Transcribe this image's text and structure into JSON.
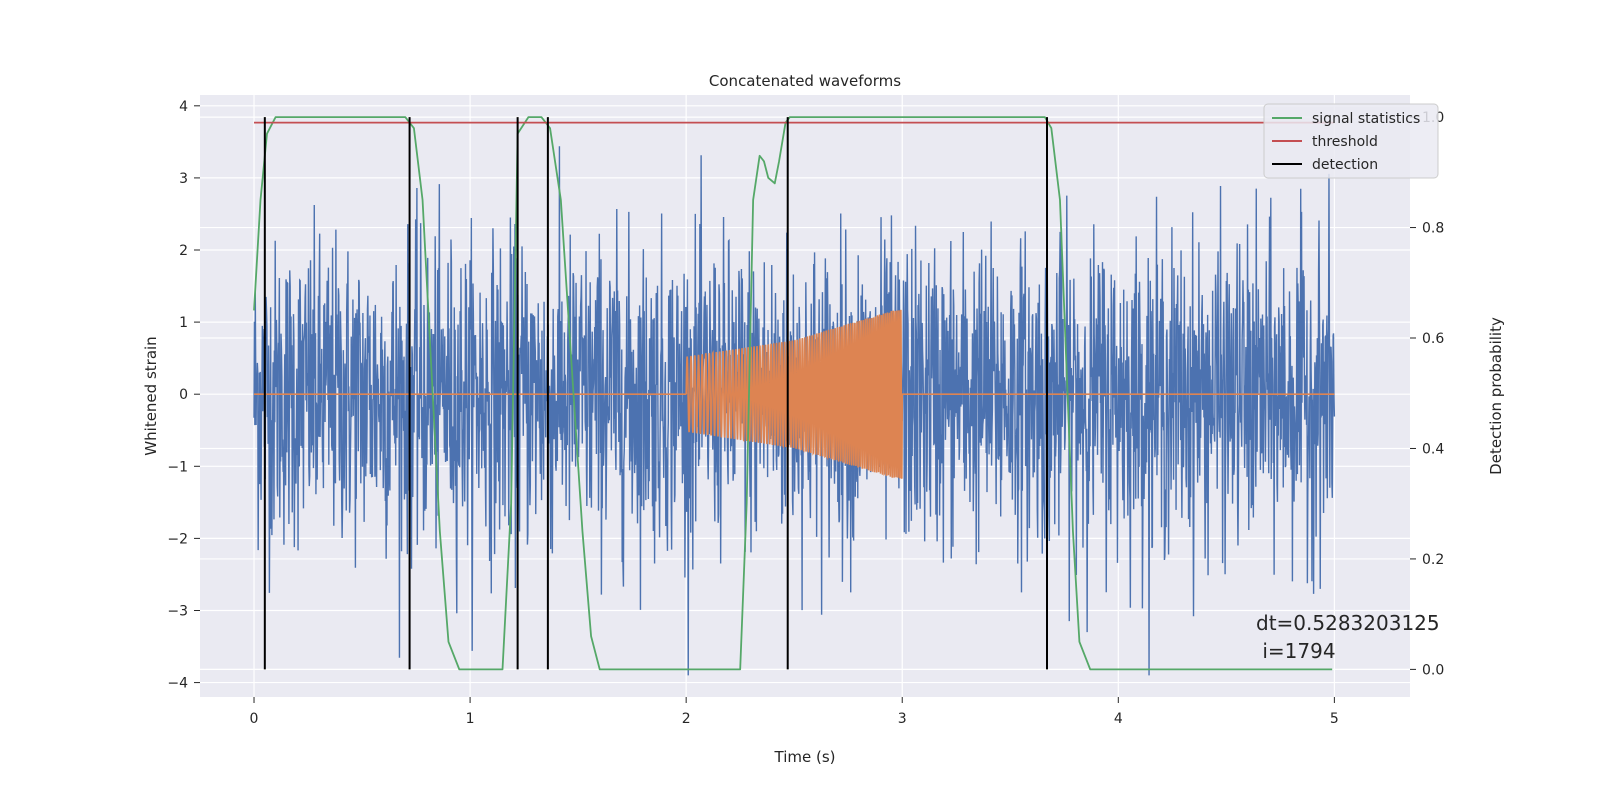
{
  "chart_data": {
    "type": "line",
    "title": "Concatenated waveforms",
    "xlabel": "Time (s)",
    "ylabel_left": "Whitened strain",
    "ylabel_right": "Detection probability",
    "xlim": [
      -0.25,
      5.35
    ],
    "ylim_left": [
      -4.2,
      4.15
    ],
    "ylim_right": [
      -0.05,
      1.04
    ],
    "xticks": [
      0,
      1,
      2,
      3,
      4,
      5
    ],
    "xtick_labels": [
      "0",
      "1",
      "2",
      "3",
      "4",
      "5"
    ],
    "yticks_left": [
      -4,
      -3,
      -2,
      -1,
      0,
      1,
      2,
      3,
      4
    ],
    "ytick_labels_left": [
      "−4",
      "−3",
      "−2",
      "−1",
      "0",
      "1",
      "2",
      "3",
      "4"
    ],
    "yticks_right": [
      0.0,
      0.2,
      0.4,
      0.6,
      0.8,
      1.0
    ],
    "ytick_labels_right": [
      "0.0",
      "0.2",
      "0.4",
      "0.6",
      "0.8",
      "1.0"
    ],
    "grid": true,
    "legend_position": "top-right",
    "colors": {
      "background": "#eaeaf2",
      "grid": "#ffffff",
      "noise": "#4c72b0",
      "signal": "#dd8452",
      "statistics": "#55a868",
      "threshold": "#c44e52",
      "detection": "#000000"
    },
    "series": [
      {
        "name": "",
        "axis": "left",
        "kind": "noisy strain",
        "x_range": [
          0,
          5
        ],
        "envelope": [
          -3.9,
          3.7
        ]
      },
      {
        "name": "",
        "axis": "left",
        "kind": "injected chirp",
        "x": [
          0,
          2.0,
          2.0,
          2.5,
          3.0,
          3.0,
          5.0
        ],
        "amplitude": [
          0,
          0,
          0.52,
          0.75,
          1.2,
          0,
          0
        ]
      },
      {
        "name": "signal statistics",
        "axis": "right",
        "x": [
          0.0,
          0.03,
          0.06,
          0.1,
          0.2,
          0.6,
          0.7,
          0.74,
          0.78,
          0.82,
          0.86,
          0.9,
          0.95,
          1.15,
          1.19,
          1.22,
          1.27,
          1.33,
          1.37,
          1.42,
          1.47,
          1.52,
          1.56,
          1.6,
          1.65,
          2.25,
          2.28,
          2.31,
          2.34,
          2.36,
          2.38,
          2.41,
          2.43,
          2.46,
          2.48,
          2.55,
          3.66,
          3.69,
          3.73,
          3.76,
          3.79,
          3.82,
          3.87,
          4.99
        ],
        "y": [
          0.65,
          0.85,
          0.97,
          1.0,
          1.0,
          1.0,
          1.0,
          0.98,
          0.85,
          0.55,
          0.25,
          0.05,
          0.0,
          0.0,
          0.3,
          0.97,
          1.0,
          1.0,
          0.98,
          0.85,
          0.55,
          0.25,
          0.06,
          0.0,
          0.0,
          0.0,
          0.3,
          0.85,
          0.93,
          0.92,
          0.89,
          0.88,
          0.92,
          0.99,
          1.0,
          1.0,
          1.0,
          0.98,
          0.85,
          0.55,
          0.25,
          0.05,
          0.0,
          0.0
        ]
      },
      {
        "name": "threshold",
        "axis": "right",
        "x": [
          0,
          5
        ],
        "y": [
          0.99,
          0.99
        ]
      }
    ],
    "detections": {
      "name": "detection",
      "x": [
        0.05,
        0.72,
        1.22,
        1.36,
        2.47,
        3.67
      ],
      "y_range": [
        0.0,
        1.0
      ]
    },
    "legend": [
      "signal statistics",
      "threshold",
      "detection"
    ],
    "annotation": {
      "line1": "dt=0.5283203125",
      "line2": " i=1794"
    }
  }
}
